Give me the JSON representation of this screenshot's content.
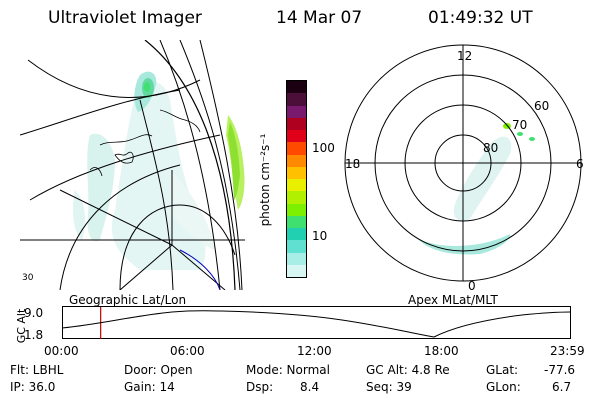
{
  "header": {
    "instrument": "Ultraviolet Imager",
    "date": "14 Mar 07",
    "time": "01:49:32 UT"
  },
  "colorbar": {
    "label": "photon cm⁻²s⁻¹",
    "tick_labels": [
      "100",
      "10"
    ],
    "colors": [
      "#1a0010",
      "#4b0f3a",
      "#7a1a6f",
      "#b00020",
      "#e0001a",
      "#ff4a00",
      "#ff8a00",
      "#ffc000",
      "#e8f000",
      "#b0f000",
      "#7cf000",
      "#3fe070",
      "#20d0b0",
      "#60e0d0",
      "#a8eee6",
      "#d8f6f4"
    ]
  },
  "left_panel": {
    "caption": "Geographic Lat/Lon",
    "tiny_label": "30"
  },
  "right_panel": {
    "caption": "Apex MLat/MLT",
    "mlt_labels": {
      "top": "12",
      "left": "18",
      "right": "6",
      "bottom": "0"
    },
    "mlat_labels": [
      "60",
      "70",
      "80"
    ]
  },
  "altitude_plot": {
    "axis_label": "GC Alt",
    "y_ticks": [
      "9.0",
      "1.8"
    ],
    "x_ticks": [
      "00:00",
      "06:00",
      "12:00",
      "18:00",
      "23:59"
    ],
    "marker_time": "01:49:32",
    "marker_color": "#c00000"
  },
  "info": {
    "filter": "Flt: LBHL",
    "ip": "IP: 36.0",
    "door": "Door: Open",
    "gain": "Gain: 14",
    "mode": "Mode: Normal",
    "dsp_label": "Dsp:",
    "dsp_value": "8.4",
    "gc_alt": "GC Alt: 4.8 Re",
    "seq": "Seq: 39",
    "glat_label": "GLat:",
    "glat_value": "-77.6",
    "glon_label": "GLon:",
    "glon_value": "6.7"
  }
}
